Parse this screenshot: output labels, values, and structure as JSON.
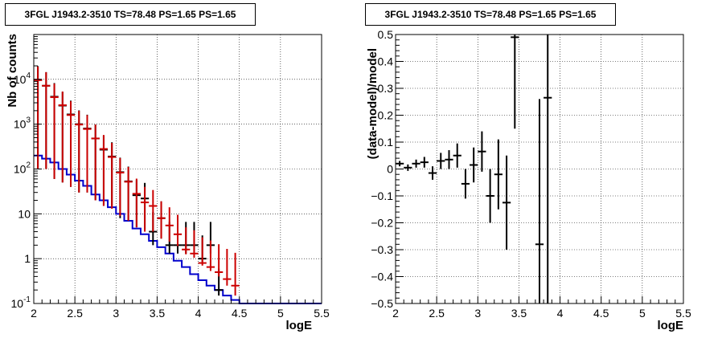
{
  "chart_data": [
    {
      "type": "scatter",
      "title": "3FGL J1943.2-3510 TS=78.48 PS=1.65 PS=1.65",
      "xlabel": "logE",
      "ylabel": "Nb of counts",
      "xlim": [
        2,
        5.5
      ],
      "ylim": [
        0.1,
        100000
      ],
      "yscale": "log",
      "grid": true,
      "xticks": [
        "2",
        "2.5",
        "3",
        "3.5",
        "4",
        "4.5",
        "5",
        "5.5"
      ],
      "yticks": [
        {
          "base": "10",
          "exp": "-1"
        },
        {
          "base": "1",
          "exp": ""
        },
        {
          "base": "10",
          "exp": ""
        },
        {
          "base": "10",
          "exp": "2"
        },
        {
          "base": "10",
          "exp": "3"
        },
        {
          "base": "10",
          "exp": "4"
        }
      ],
      "colors": {
        "data": "#000000",
        "model": "#cc0000",
        "background": "#0000cc"
      },
      "series": [
        {
          "role": "data",
          "x": [
            2.05,
            2.15,
            2.25,
            2.35,
            2.45,
            2.55,
            2.65,
            2.75,
            2.85,
            2.95,
            3.05,
            3.15,
            3.25,
            3.35,
            3.45,
            3.55,
            3.65,
            3.75,
            3.85,
            3.95,
            4.05,
            4.15,
            4.25
          ],
          "y": [
            9800,
            7200,
            4100,
            2600,
            1650,
            1000,
            800,
            480,
            270,
            190,
            85,
            53,
            26,
            22,
            4,
            8,
            2,
            2,
            2,
            2,
            1,
            2,
            0.2
          ],
          "err_low": [
            9700,
            7100,
            4040,
            2550,
            1610,
            970,
            770,
            460,
            255,
            175,
            77,
            46,
            21,
            17.5,
            2,
            5.2,
            0.7,
            0.7,
            0.7,
            0.7,
            0.15,
            0.7,
            0.05
          ],
          "err_high": [
            9900,
            7300,
            4160,
            2650,
            1690,
            1030,
            830,
            500,
            285,
            205,
            94,
            60,
            31,
            27,
            7,
            11,
            4.6,
            4.6,
            4.6,
            4.6,
            2.3,
            4.6,
            0.4
          ]
        },
        {
          "role": "model",
          "x": [
            2.05,
            2.15,
            2.25,
            2.35,
            2.45,
            2.55,
            2.65,
            2.75,
            2.85,
            2.95,
            3.05,
            3.15,
            3.25,
            3.35,
            3.45,
            3.55,
            3.65,
            3.75,
            3.85,
            3.95,
            4.05,
            4.15,
            4.25,
            4.35,
            4.45
          ],
          "y": [
            9600,
            7200,
            4000,
            2650,
            1600,
            980,
            780,
            480,
            280,
            185,
            83,
            52,
            28,
            18,
            15,
            8,
            5.5,
            3.5,
            1.6,
            1.3,
            0.8,
            0.65,
            0.5,
            0.35,
            0.25
          ],
          "err_low": [
            9500,
            7100,
            3940,
            2600,
            1560,
            950,
            750,
            460,
            265,
            172,
            74,
            45,
            23,
            14,
            11,
            5.2,
            3.1,
            1.6,
            0.35,
            0.25,
            0.1,
            0.12,
            0.1,
            0.1,
            0.1
          ],
          "err_high": [
            9700,
            7300,
            4060,
            2700,
            1640,
            1010,
            810,
            500,
            295,
            198,
            92,
            59,
            33,
            22,
            19,
            11,
            8.5,
            6,
            3.4,
            3,
            2.2,
            1.9,
            1.6,
            1.3,
            1.1
          ]
        },
        {
          "role": "background",
          "step_edges": [
            2.0,
            2.1,
            2.2,
            2.3,
            2.4,
            2.5,
            2.6,
            2.7,
            2.8,
            2.9,
            3.0,
            3.1,
            3.2,
            3.3,
            3.4,
            3.5,
            3.6,
            3.7,
            3.8,
            3.9,
            4.0,
            4.1,
            4.2,
            4.3,
            4.4,
            4.5,
            5.5
          ],
          "step_values": [
            200,
            170,
            140,
            100,
            75,
            55,
            42,
            27,
            20,
            14,
            10,
            7,
            4.7,
            3.5,
            2.5,
            1.8,
            1.3,
            0.9,
            0.65,
            0.45,
            0.33,
            0.25,
            0.2,
            0.15,
            0.12,
            0.1
          ]
        }
      ]
    },
    {
      "type": "scatter",
      "title": "3FGL J1943.2-3510 TS=78.48 PS=1.65 PS=1.65",
      "xlabel": "logE",
      "ylabel": "(data-model)/model",
      "xlim": [
        2,
        5.5
      ],
      "ylim": [
        -0.5,
        0.5
      ],
      "grid": true,
      "xticks": [
        "2",
        "2.5",
        "3",
        "3.5",
        "4",
        "4.5",
        "5",
        "5.5"
      ],
      "yticks": [
        "−0.5",
        "−0.4",
        "−0.3",
        "−0.2",
        "−0.1",
        "0",
        "0.1",
        "0.2",
        "0.3",
        "0.4",
        "0.5"
      ],
      "colors": {
        "data": "#000000"
      },
      "series": [
        {
          "role": "residuals",
          "x": [
            2.05,
            2.15,
            2.25,
            2.35,
            2.45,
            2.55,
            2.65,
            2.75,
            2.85,
            2.95,
            3.05,
            3.15,
            3.25,
            3.35,
            3.45,
            3.75,
            3.85
          ],
          "y": [
            0.02,
            0.005,
            0.02,
            0.025,
            -0.015,
            0.03,
            0.035,
            0.05,
            -0.055,
            0.015,
            0.065,
            -0.1,
            -0.02,
            -0.125,
            0.49,
            -0.28,
            0.265
          ],
          "err": [
            0.01,
            0.012,
            0.015,
            0.02,
            0.025,
            0.03,
            0.035,
            0.045,
            0.055,
            0.065,
            0.075,
            0.1,
            0.13,
            0.175,
            0.34,
            0.54,
            0.85
          ]
        }
      ]
    }
  ]
}
